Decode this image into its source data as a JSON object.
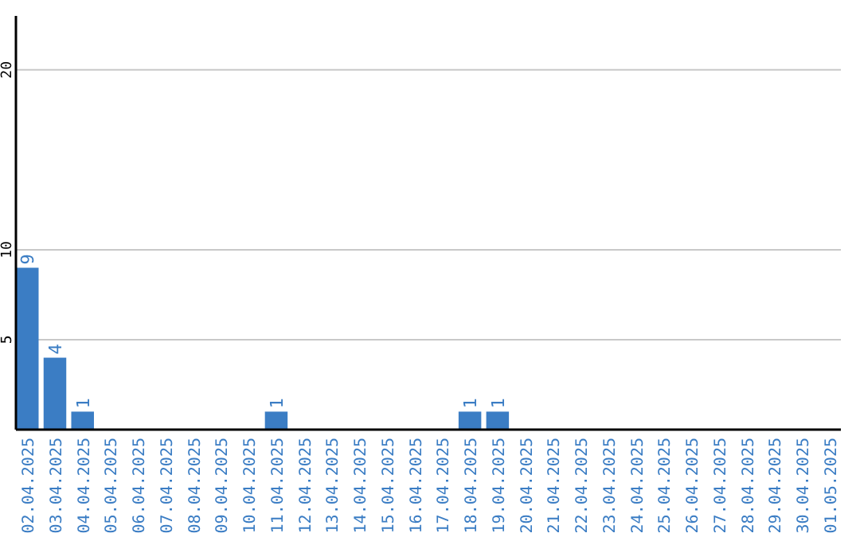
{
  "chart_data": {
    "type": "bar",
    "categories": [
      "02.04.2025",
      "03.04.2025",
      "04.04.2025",
      "05.04.2025",
      "06.04.2025",
      "07.04.2025",
      "08.04.2025",
      "09.04.2025",
      "10.04.2025",
      "11.04.2025",
      "12.04.2025",
      "13.04.2025",
      "14.04.2025",
      "15.04.2025",
      "16.04.2025",
      "17.04.2025",
      "18.04.2025",
      "19.04.2025",
      "20.04.2025",
      "21.04.2025",
      "22.04.2025",
      "23.04.2025",
      "24.04.2025",
      "25.04.2025",
      "26.04.2025",
      "27.04.2025",
      "28.04.2025",
      "29.04.2025",
      "30.04.2025",
      "01.05.2025"
    ],
    "values": [
      9,
      4,
      1,
      0,
      0,
      0,
      0,
      0,
      0,
      1,
      0,
      0,
      0,
      0,
      0,
      0,
      1,
      1,
      0,
      0,
      0,
      0,
      0,
      0,
      0,
      0,
      0,
      0,
      0,
      0
    ],
    "value_labels": [
      "9",
      "4",
      "1",
      null,
      null,
      null,
      null,
      null,
      null,
      "1",
      null,
      null,
      null,
      null,
      null,
      null,
      "1",
      "1",
      null,
      null,
      null,
      null,
      null,
      null,
      null,
      null,
      null,
      null,
      null,
      null
    ],
    "color": "#3b7dc4",
    "ylim": [
      0,
      23
    ],
    "yticks": [
      5,
      10,
      20
    ],
    "grid": "y"
  }
}
